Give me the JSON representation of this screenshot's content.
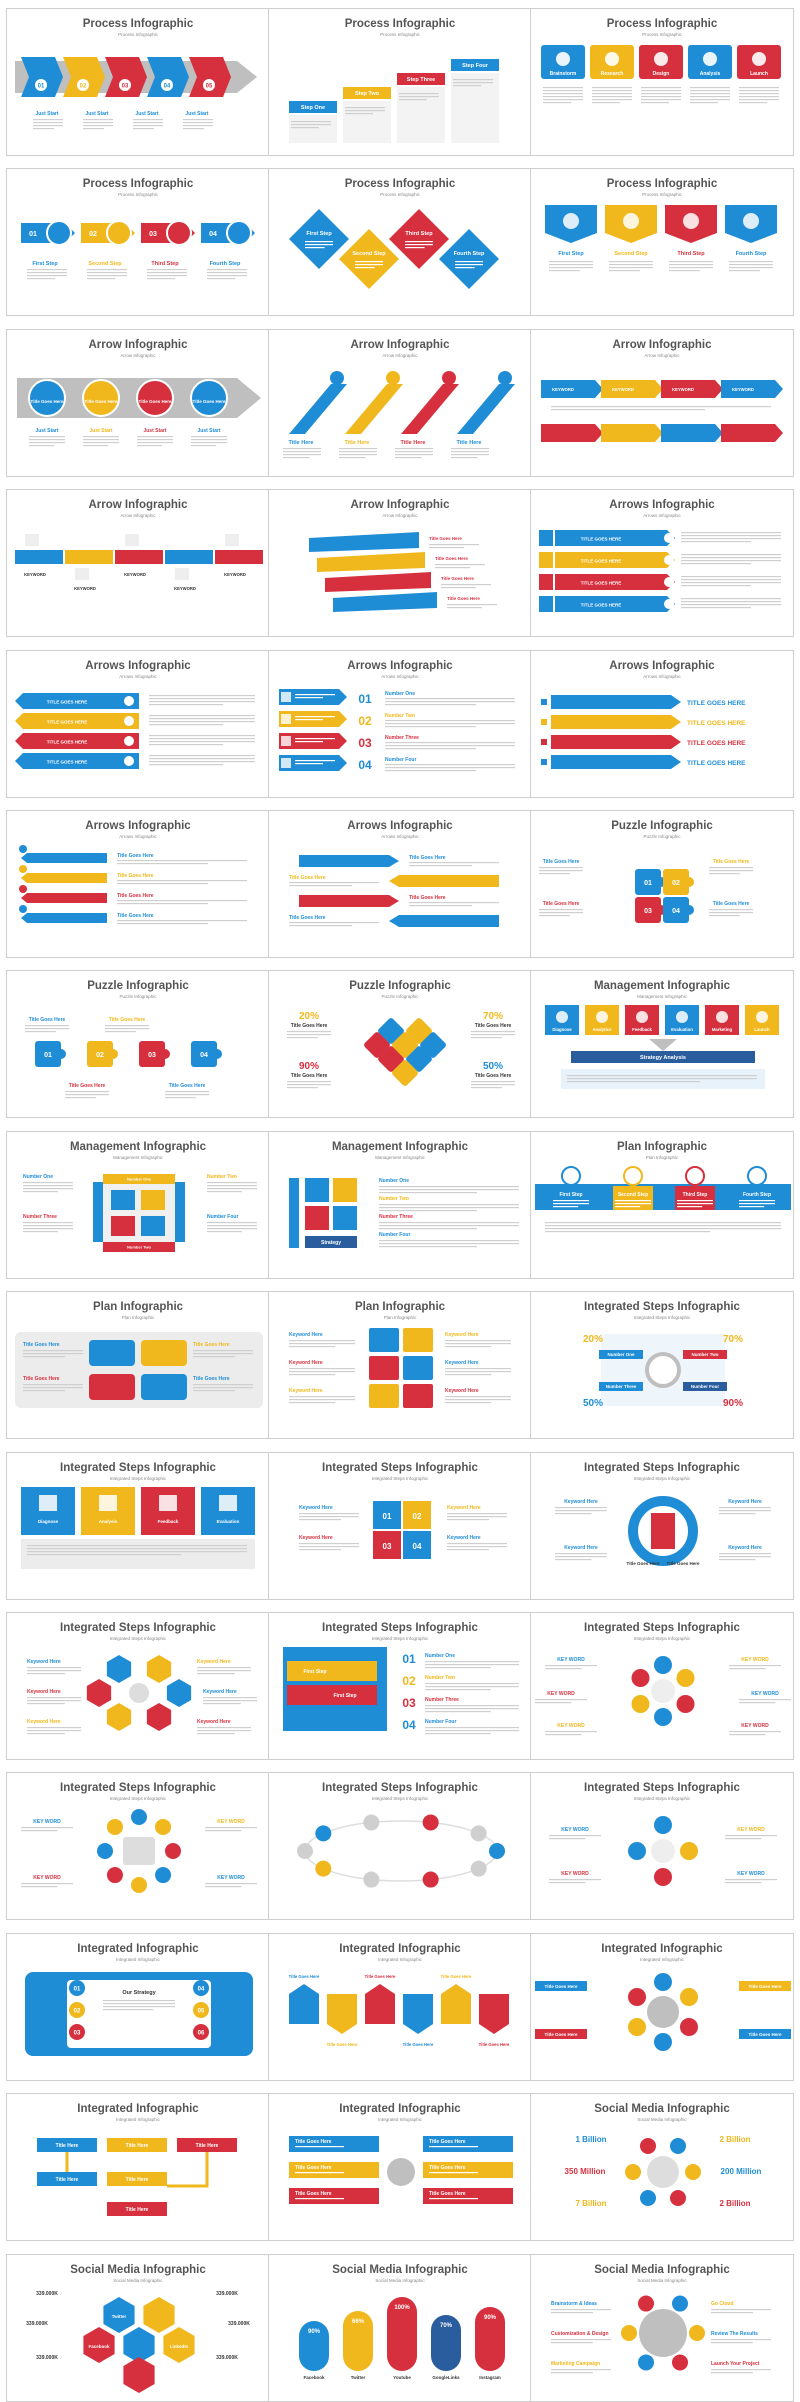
{
  "colors": {
    "blue": "#1f8dd6",
    "yellow": "#f0b81c",
    "red": "#d6303f",
    "navy": "#2a5d9e",
    "gray": "#bfbfbf",
    "title": "#555555"
  },
  "slides": [
    {
      "title": "Process Infographic",
      "subtitle": "Process Infographic",
      "variant": "arrows-numbered",
      "labels": [
        "01",
        "02",
        "03",
        "04",
        "05",
        "Just Start",
        "Just Start",
        "Just Start",
        "Just Start"
      ]
    },
    {
      "title": "Process Infographic",
      "subtitle": "Process Infographic",
      "variant": "steps",
      "labels": [
        "Step One",
        "Step Two",
        "Step Three",
        "Step Four"
      ]
    },
    {
      "title": "Process Infographic",
      "subtitle": "Process Infographic",
      "variant": "cards5",
      "labels": [
        "Brainstorm",
        "Research",
        "Design",
        "Analysis",
        "Launch"
      ]
    },
    {
      "title": "Process Infographic",
      "subtitle": "Process Infographic",
      "variant": "chevron-circles",
      "labels": [
        "01",
        "02",
        "03",
        "04",
        "First Step",
        "Second Step",
        "Third Step",
        "Fourth Step"
      ]
    },
    {
      "title": "Process Infographic",
      "subtitle": "Process Infographic",
      "variant": "diamonds",
      "labels": [
        "First Step",
        "Second Step",
        "Third Step",
        "Fourth Step"
      ]
    },
    {
      "title": "Process Infographic",
      "subtitle": "Process Infographic",
      "variant": "tabs4",
      "labels": [
        "First Step",
        "Second Step",
        "Third Step",
        "Fourth Step"
      ]
    },
    {
      "title": "Arrow Infographic",
      "subtitle": "Arrow Infographic",
      "variant": "arrows-circles",
      "labels": [
        "Title Goes Here",
        "Title Goes Here",
        "Title Goes Here",
        "Title Goes Here",
        "Just Start",
        "Just Start",
        "Just Start",
        "Just Start"
      ]
    },
    {
      "title": "Arrow Infographic",
      "subtitle": "Arrow Infographic",
      "variant": "diagonal-arrows",
      "labels": [
        "Title Here",
        "Title Here",
        "Title Here",
        "Title Here"
      ]
    },
    {
      "title": "Arrow Infographic",
      "subtitle": "Arrow Infographic",
      "variant": "arrow-rows",
      "labels": [
        "KEYWORD",
        "KEYWORD",
        "KEYWORD",
        "KEYWORD"
      ]
    },
    {
      "title": "Arrow Infographic",
      "subtitle": "Arrow Infographic",
      "variant": "flags",
      "labels": [
        "KEYWORD",
        "KEYWORD",
        "KEYWORD",
        "KEYWORD",
        "KEYWORD"
      ]
    },
    {
      "title": "Arrow Infographic",
      "subtitle": "Arrow Infographic",
      "variant": "ribbons",
      "labels": [
        "Title Goes Here",
        "Title Goes Here",
        "Title Goes Here",
        "Title Goes Here"
      ]
    },
    {
      "title": "Arrows Infographic",
      "subtitle": "Arrows Infographic",
      "variant": "bars-right",
      "labels": [
        "TITLE GOES HERE",
        "TITLE GOES HERE",
        "TITLE GOES HERE",
        "TITLE GOES HERE"
      ]
    },
    {
      "title": "Arrows Infographic",
      "subtitle": "Arrows Infographic",
      "variant": "bars-left",
      "labels": [
        "TITLE GOES HERE",
        "TITLE GOES HERE",
        "TITLE GOES HERE",
        "TITLE GOES HERE"
      ]
    },
    {
      "title": "Arrows Infographic",
      "subtitle": "Arrows Infographic",
      "variant": "numbered-rows",
      "labels": [
        "01",
        "02",
        "03",
        "04",
        "Number One",
        "Number Two",
        "Number Three",
        "Number Four"
      ]
    },
    {
      "title": "Arrows Infographic",
      "subtitle": "Arrows Infographic",
      "variant": "arrow-text",
      "labels": [
        "TITLE GOES HERE",
        "TITLE GOES HERE",
        "TITLE GOES HERE",
        "TITLE GOES HERE"
      ]
    },
    {
      "title": "Arrows Infographic",
      "subtitle": "Arrows Infographic",
      "variant": "icon-rows",
      "labels": [
        "Title Goes Here",
        "Title Goes Here",
        "Title Goes Here",
        "Title Goes Here"
      ]
    },
    {
      "title": "Arrows Infographic",
      "subtitle": "Arrows Infographic",
      "variant": "zigzag",
      "labels": [
        "Title Goes Here",
        "Title Goes Here",
        "Title Goes Here",
        "Title Goes Here"
      ]
    },
    {
      "title": "Puzzle Infographic",
      "subtitle": "Puzzle Infographic",
      "variant": "puzzle4",
      "labels": [
        "01",
        "02",
        "03",
        "04",
        "Title Goes Here",
        "Title Goes Here",
        "Title Goes Here",
        "Title Goes Here"
      ]
    },
    {
      "title": "Puzzle Infographic",
      "subtitle": "Puzzle Infographic",
      "variant": "puzzle-row",
      "labels": [
        "01",
        "02",
        "03",
        "04",
        "Title Goes Here",
        "Title Goes Here",
        "Title Goes Here",
        "Title Goes Here"
      ]
    },
    {
      "title": "Puzzle Infographic",
      "subtitle": "Puzzle Infographic",
      "variant": "puzzle-cross",
      "labels": [
        "20%",
        "70%",
        "90%",
        "50%",
        "Title Goes Here",
        "Title Goes Here",
        "Title Goes Here",
        "Title Goes Here"
      ]
    },
    {
      "title": "Management Infographic",
      "subtitle": "Management Infographic",
      "variant": "mgmt-cards",
      "labels": [
        "Diagnose",
        "Analytics",
        "Feedback",
        "Evaluation",
        "Marketing",
        "Launch",
        "Strategy Analysis"
      ]
    },
    {
      "title": "Management  Infographic",
      "subtitle": "Management Infographic",
      "variant": "mgmt-square",
      "labels": [
        "Number One",
        "Number Two",
        "Number Three",
        "Number Four",
        "Number One",
        "Number Two"
      ]
    },
    {
      "title": "Management  Infographic",
      "subtitle": "Management Infographic",
      "variant": "mgmt-tiles",
      "labels": [
        "Number One",
        "Number Two",
        "Number Three",
        "Number Four",
        "Strategy",
        "Creativity"
      ]
    },
    {
      "title": "Plan Infographic",
      "subtitle": "Plan Infographic",
      "variant": "plan-band",
      "labels": [
        "First Step",
        "Second Step",
        "Third Step",
        "Fourth Step"
      ]
    },
    {
      "title": "Plan Infographic",
      "subtitle": "Plan Infographic",
      "variant": "plan-double",
      "labels": [
        "Title Goes Here",
        "Title Goes Here",
        "Title Goes Here",
        "Title Goes Here"
      ]
    },
    {
      "title": "Plan Infographic",
      "subtitle": "Plan Infographic",
      "variant": "plan-grid",
      "labels": [
        "Keyword Here",
        "Keyword Here",
        "Keyword Here",
        "Keyword Here",
        "Keyword Here",
        "Keyword Here"
      ]
    },
    {
      "title": "Integrated Steps Infographic",
      "subtitle": "Integrated Steps Infographic",
      "variant": "int-pct",
      "labels": [
        "20%",
        "70%",
        "50%",
        "90%",
        "Number One",
        "Number Two",
        "Number Three",
        "Number Four"
      ]
    },
    {
      "title": "Integrated Steps Infographic",
      "subtitle": "Integrated Steps Infographic",
      "variant": "int-cards",
      "labels": [
        "Diagnose",
        "Analysis",
        "Feedback",
        "Evaluation"
      ]
    },
    {
      "title": "Integrated Steps Infographic",
      "subtitle": "Integrated Steps Infographic",
      "variant": "int-quad",
      "labels": [
        "01",
        "02",
        "03",
        "04",
        "Keyword Here",
        "Keyword Here",
        "Keyword Here",
        "Keyword Here"
      ]
    },
    {
      "title": "Integrated Steps Infographic",
      "subtitle": "Integrated Steps Infographic",
      "variant": "int-ring",
      "labels": [
        "Keyword Here",
        "Keyword Here",
        "Keyword Here",
        "Keyword Here",
        "Title Goes Here",
        "Title Goes Here"
      ]
    },
    {
      "title": "Integrated Steps Infographic",
      "subtitle": "Integrated Steps Infographic",
      "variant": "int-hex",
      "labels": [
        "Keyword Here",
        "Keyword Here",
        "Keyword Here",
        "Keyword Here",
        "Keyword Here",
        "Keyword Here"
      ]
    },
    {
      "title": "Integrated Steps Infographic",
      "subtitle": "Integrated Steps Infographic",
      "variant": "int-list",
      "labels": [
        "01",
        "02",
        "03",
        "04",
        "Number One",
        "Number Two",
        "Number Three",
        "Number Four",
        "First Step",
        "First Step"
      ]
    },
    {
      "title": "Integrated Steps Infographic",
      "subtitle": "Integrated Steps Infographic",
      "variant": "int-spokes",
      "labels": [
        "KEY WORD",
        "KEY WORD",
        "KEY WORD",
        "KEY WORD",
        "KEY WORD",
        "KEY WORD"
      ]
    },
    {
      "title": "Integrated Steps Infographic",
      "subtitle": "Integrated Steps Infographic",
      "variant": "int-hub",
      "labels": [
        "KEY WORD",
        "KEY WORD",
        "KEY WORD",
        "KEY WORD"
      ]
    },
    {
      "title": "Integrated Steps Infographic",
      "subtitle": "Integrated Steps Infographic",
      "variant": "int-orbit",
      "labels": []
    },
    {
      "title": "Integrated Steps Infographic",
      "subtitle": "Integrated Steps Infographic",
      "variant": "int-cycle",
      "labels": [
        "KEY WORD",
        "KEY WORD",
        "KEY WORD",
        "KEY WORD"
      ]
    },
    {
      "title": "Integrated Infographic",
      "subtitle": "Integrated Infographic",
      "variant": "int-strategy",
      "labels": [
        "01",
        "02",
        "03",
        "04",
        "05",
        "06",
        "Our Strategy"
      ]
    },
    {
      "title": "Integrated Infographic",
      "subtitle": "Integrated Infographic",
      "variant": "int-arrows6",
      "labels": [
        "Title Goes Here",
        "Title Goes Here",
        "Title Goes Here",
        "Title Goes Here",
        "Title Goes Here",
        "Title Goes Here"
      ]
    },
    {
      "title": "Integrated Infographic",
      "subtitle": "Integrated Infographic",
      "variant": "int-wheel",
      "labels": [
        "Title Goes Here",
        "Title Goes Here",
        "Title Goes Here",
        "Title Goes Here"
      ]
    },
    {
      "title": "Integrated Infographic",
      "subtitle": "Integrated Infographic",
      "variant": "int-flow",
      "labels": [
        "Title Here",
        "Title Here",
        "Title Here",
        "Title Here",
        "Title Here",
        "Title Here"
      ]
    },
    {
      "title": "Integrated Infographic",
      "subtitle": "Integrated Infographic",
      "variant": "int-split",
      "labels": [
        "Title Goes Here",
        "Title Goes Here",
        "Title Goes Here",
        "Title Goes Here",
        "Title Goes Here",
        "Title Goes Here"
      ]
    },
    {
      "title": "Social Media Infographic",
      "subtitle": "Social Media Infographic",
      "variant": "social-stats",
      "labels": [
        "1 Billion",
        "2 Billion",
        "350 Million",
        "200 Million",
        "7 Billion",
        "2 Billion"
      ]
    },
    {
      "title": "Social Media Infographic",
      "subtitle": "Social Media Infographic",
      "variant": "social-hex",
      "labels": [
        "339.000K",
        "339.000K",
        "339.000K",
        "339.000K",
        "339.000K",
        "339.000K",
        "Twitter",
        "Facebook",
        "LinkedIn"
      ]
    },
    {
      "title": "Social Media Infographic",
      "subtitle": "Social Media Infographic",
      "variant": "social-pills",
      "labels": [
        "90%",
        "66%",
        "100%",
        "70%",
        "90%",
        "Facebook",
        "Twitter",
        "Youtube",
        "GoogleLinks",
        "Instagram"
      ]
    },
    {
      "title": "Social Media Infographic",
      "subtitle": "Social Media Infographic",
      "variant": "social-globe",
      "labels": [
        "Brainstorm & Ideas",
        "Go Cloud",
        "Customization & Design",
        "Review The Results",
        "Marketing Campaign",
        "Launch Your Project"
      ]
    }
  ]
}
